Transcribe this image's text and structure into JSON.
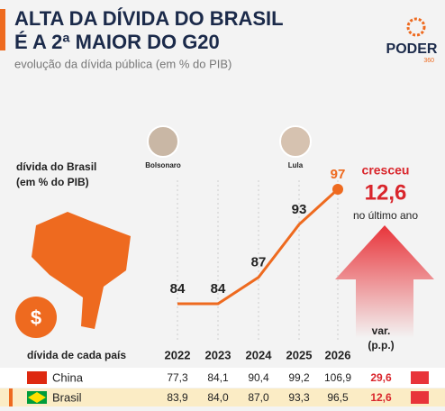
{
  "header": {
    "title_line1": "ALTA DA DÍVIDA DO BRASIL",
    "title_line2": "É A 2ª MAIOR DO G20",
    "subtitle": "evolução da dívida pública (em % do PIB)",
    "logo": "PODER",
    "logo_sub": "360"
  },
  "chart_data": {
    "type": "line",
    "title_line1": "dívida do Brasil",
    "title_line2": "(em % do PIB)",
    "categories": [
      "2022",
      "2023",
      "2024",
      "2025",
      "2026"
    ],
    "values": [
      84,
      84,
      87,
      93,
      97
    ],
    "color": "#ee6a1f",
    "annotations": [
      {
        "label": "Bolsonaro"
      },
      {
        "label": "Lula"
      }
    ],
    "callout": {
      "line1": "cresceu",
      "value": "12,6",
      "line2": "no último ano"
    }
  },
  "table": {
    "header_label": "dívida de cada país",
    "var_header_line1": "var.",
    "var_header_line2": "(p.p.)",
    "rows": [
      [
        "China",
        "77,3",
        "84,1",
        "90,4",
        "99,2",
        "106,9",
        "29,6"
      ],
      [
        "Brasil",
        "83,9",
        "84,0",
        "87,0",
        "93,3",
        "96,5",
        "12,6"
      ]
    ]
  }
}
